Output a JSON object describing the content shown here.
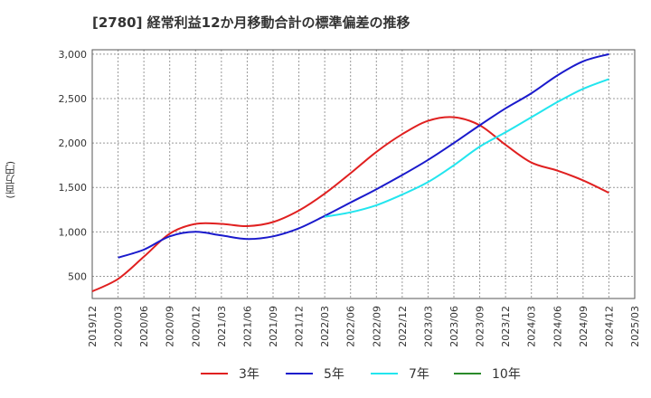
{
  "chart_data": {
    "type": "line",
    "title": "[2780]  経常利益12か月移動合計の標準偏差の推移",
    "ylabel": "(百万円)",
    "xlabel": "",
    "ylim": [
      250,
      3050
    ],
    "yticks": [
      500,
      1000,
      1500,
      2000,
      2500,
      3000
    ],
    "ytick_labels": [
      "500",
      "1,000",
      "1,500",
      "2,000",
      "2,500",
      "3,000"
    ],
    "x_ticks": [
      "2019/12",
      "2020/03",
      "2020/06",
      "2020/09",
      "2020/12",
      "2021/03",
      "2021/06",
      "2021/09",
      "2021/12",
      "2022/03",
      "2022/06",
      "2022/09",
      "2022/12",
      "2023/03",
      "2023/06",
      "2023/09",
      "2023/12",
      "2024/03",
      "2024/06",
      "2024/09",
      "2024/12",
      "2025/03"
    ],
    "grid": true,
    "legend_position": "bottom",
    "series": [
      {
        "name": "3年",
        "color": "#e02020",
        "x": [
          "2019/12",
          "2020/03",
          "2020/06",
          "2020/09",
          "2020/12",
          "2021/03",
          "2021/06",
          "2021/09",
          "2021/12",
          "2022/03",
          "2022/06",
          "2022/09",
          "2022/12",
          "2023/03",
          "2023/06",
          "2023/09",
          "2023/12",
          "2024/03",
          "2024/06",
          "2024/09",
          "2024/12"
        ],
        "values": [
          330,
          470,
          720,
          980,
          1090,
          1090,
          1065,
          1110,
          1240,
          1430,
          1660,
          1900,
          2100,
          2250,
          2290,
          2200,
          1980,
          1780,
          1690,
          1580,
          1440
        ]
      },
      {
        "name": "5年",
        "color": "#1a1acc",
        "x": [
          "2020/03",
          "2020/06",
          "2020/09",
          "2020/12",
          "2021/03",
          "2021/06",
          "2021/09",
          "2021/12",
          "2022/03",
          "2022/06",
          "2022/09",
          "2022/12",
          "2023/03",
          "2023/06",
          "2023/09",
          "2023/12",
          "2024/03",
          "2024/06",
          "2024/09",
          "2024/12"
        ],
        "values": [
          710,
          800,
          950,
          1000,
          960,
          920,
          950,
          1040,
          1180,
          1330,
          1480,
          1640,
          1810,
          2000,
          2200,
          2390,
          2560,
          2760,
          2920,
          3000
        ]
      },
      {
        "name": "7年",
        "color": "#22e5ee",
        "x": [
          "2022/03",
          "2022/06",
          "2022/09",
          "2022/12",
          "2023/03",
          "2023/06",
          "2023/09",
          "2023/12",
          "2024/03",
          "2024/06",
          "2024/09",
          "2024/12"
        ],
        "values": [
          1170,
          1220,
          1300,
          1420,
          1560,
          1750,
          1960,
          2120,
          2290,
          2460,
          2610,
          2720
        ]
      },
      {
        "name": "10年",
        "color": "#2a8a2a",
        "x": [],
        "values": []
      }
    ]
  }
}
